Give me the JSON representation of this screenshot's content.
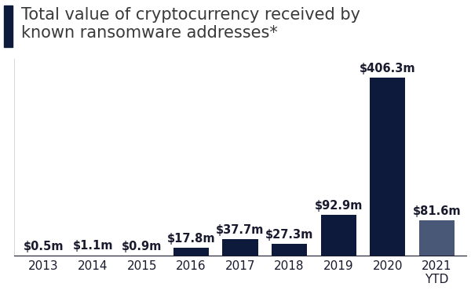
{
  "chart_data": {
    "type": "bar",
    "title": "Total value of cryptocurrency received by\nknown ransomware addresses*",
    "categories": [
      "2013",
      "2014",
      "2015",
      "2016",
      "2017",
      "2018",
      "2019",
      "2020",
      "2021\nYTD"
    ],
    "values": [
      0.5,
      1.1,
      0.9,
      17.8,
      37.7,
      27.3,
      92.9,
      406.3,
      81.6
    ],
    "value_labels": [
      "$0.5m",
      "$1.1m",
      "$0.9m",
      "$17.8m",
      "$37.7m",
      "$27.3m",
      "$92.9m",
      "$406.3m",
      "$81.6m"
    ],
    "colors": [
      "#0e1a3b",
      "#0e1a3b",
      "#0e1a3b",
      "#0e1a3b",
      "#0e1a3b",
      "#0e1a3b",
      "#0e1a3b",
      "#0e1a3b",
      "#4a5878"
    ],
    "ylim": [
      0,
      450
    ],
    "data_labels": true,
    "tick_labels": "x",
    "grid": false
  }
}
